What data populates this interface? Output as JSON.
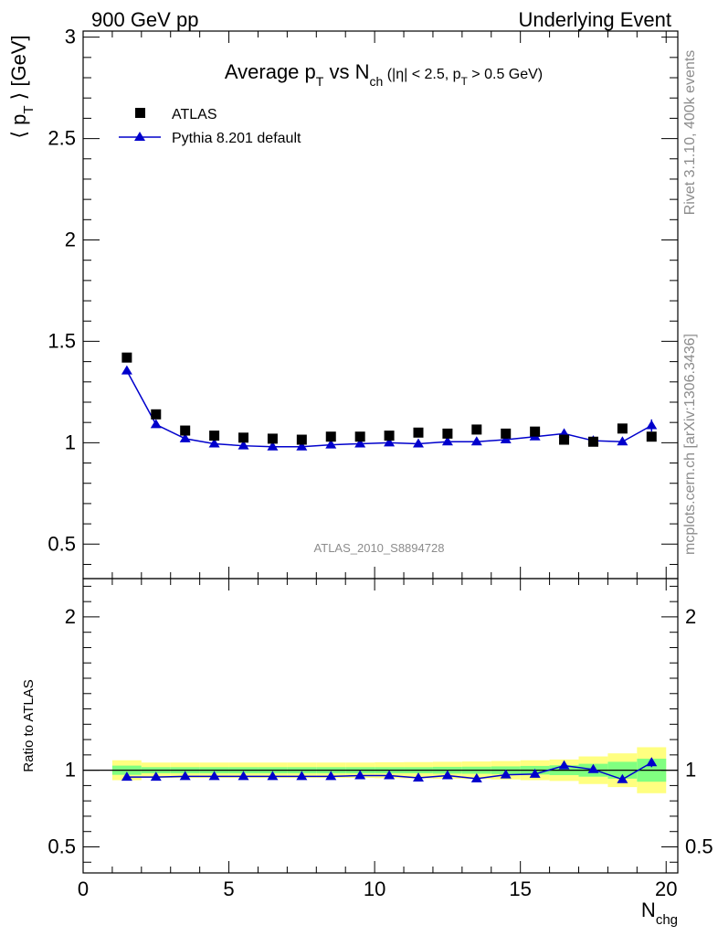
{
  "header": {
    "left": "900 GeV pp",
    "right": "Underlying Event"
  },
  "side": {
    "top": "Rivet 3.1.10,  400k events",
    "bottom": "mcplots.cern.ch [arXiv:1306.3436]"
  },
  "chart_data": [
    {
      "type": "scatter",
      "title": {
        "pre": "Average p",
        "sub1": "T",
        "mid": " vs N",
        "sub2": "ch",
        "cut_a": " (|η| < 2.5, p",
        "cut_sub": "T",
        "cut_b": " > 0.5 GeV)"
      },
      "ylabel": {
        "pre": "⟨ p",
        "sub": "T",
        "post": " ⟩ [GeV]"
      },
      "watermark": "ATLAS_2010_S8894728",
      "xlim": [
        0,
        20.4
      ],
      "ylim": [
        0.33,
        3.03
      ],
      "yticks": [
        "0.5",
        "1",
        "1.5",
        "2",
        "2.5",
        "3"
      ],
      "ytick_values": [
        0.5,
        1,
        1.5,
        2,
        2.5,
        3
      ],
      "x": [
        1.5,
        2.5,
        3.5,
        4.5,
        5.5,
        6.5,
        7.5,
        8.5,
        9.5,
        10.5,
        11.5,
        12.5,
        13.5,
        14.5,
        15.5,
        16.5,
        17.5,
        18.5,
        19.5
      ],
      "series": [
        {
          "name": "ATLAS",
          "marker": "square",
          "color": "#000000",
          "values": [
            1.42,
            1.14,
            1.06,
            1.035,
            1.025,
            1.02,
            1.015,
            1.03,
            1.03,
            1.035,
            1.05,
            1.045,
            1.065,
            1.045,
            1.055,
            1.015,
            1.005,
            1.07,
            1.03
          ]
        },
        {
          "name": "Pythia 8.201 default",
          "marker": "triangle",
          "color": "#0000cc",
          "values": [
            1.355,
            1.09,
            1.02,
            0.995,
            0.985,
            0.98,
            0.98,
            0.99,
            0.995,
            1.0,
            0.995,
            1.005,
            1.005,
            1.015,
            1.03,
            1.045,
            1.01,
            1.005,
            1.085
          ],
          "errors": [
            0.004,
            0.004,
            0.004,
            0.004,
            0.004,
            0.004,
            0.004,
            0.004,
            0.004,
            0.004,
            0.004,
            0.004,
            0.005,
            0.005,
            0.006,
            0.008,
            0.01,
            0.015,
            0.03
          ]
        }
      ],
      "legend_placement": "top-left"
    },
    {
      "type": "line",
      "ylabel": "Ratio to ATLAS",
      "xlabel": {
        "pre": "N",
        "sub": "chg"
      },
      "xlim": [
        0,
        20.4
      ],
      "xticks": [
        "0",
        "5",
        "10",
        "15",
        "20"
      ],
      "xtick_values": [
        0,
        5,
        10,
        15,
        20
      ],
      "ylim": [
        0.33,
        2.25
      ],
      "yticks": [
        "0.5",
        "1",
        "2"
      ],
      "ytick_values": [
        0.5,
        1,
        2
      ],
      "reference_line": 1,
      "bins": [
        [
          1,
          2
        ],
        [
          2,
          3
        ],
        [
          3,
          4
        ],
        [
          4,
          5
        ],
        [
          5,
          6
        ],
        [
          6,
          7
        ],
        [
          7,
          8
        ],
        [
          8,
          9
        ],
        [
          9,
          10
        ],
        [
          10,
          11
        ],
        [
          11,
          12
        ],
        [
          12,
          13
        ],
        [
          13,
          14
        ],
        [
          14,
          15
        ],
        [
          15,
          16
        ],
        [
          16,
          17
        ],
        [
          17,
          18
        ],
        [
          18,
          19
        ],
        [
          19,
          20
        ]
      ],
      "band_total": [
        0.065,
        0.05,
        0.05,
        0.05,
        0.05,
        0.05,
        0.05,
        0.05,
        0.05,
        0.052,
        0.053,
        0.055,
        0.057,
        0.06,
        0.065,
        0.07,
        0.09,
        0.11,
        0.15
      ],
      "band_stat": [
        0.03,
        0.02,
        0.02,
        0.02,
        0.02,
        0.02,
        0.02,
        0.02,
        0.02,
        0.02,
        0.02,
        0.022,
        0.023,
        0.025,
        0.028,
        0.032,
        0.042,
        0.055,
        0.075
      ],
      "band_colors": {
        "total": "#ffff80",
        "stat": "#80ff80"
      },
      "series": [
        {
          "name": "Pythia 8.201 default",
          "color": "#0000cc",
          "values": [
            0.955,
            0.955,
            0.96,
            0.96,
            0.96,
            0.96,
            0.96,
            0.96,
            0.965,
            0.965,
            0.95,
            0.965,
            0.945,
            0.97,
            0.975,
            1.03,
            1.005,
            0.94,
            1.05
          ],
          "errors": [
            0.004,
            0.004,
            0.004,
            0.004,
            0.004,
            0.004,
            0.004,
            0.004,
            0.004,
            0.004,
            0.004,
            0.004,
            0.005,
            0.005,
            0.006,
            0.008,
            0.01,
            0.015,
            0.03
          ]
        }
      ]
    }
  ]
}
